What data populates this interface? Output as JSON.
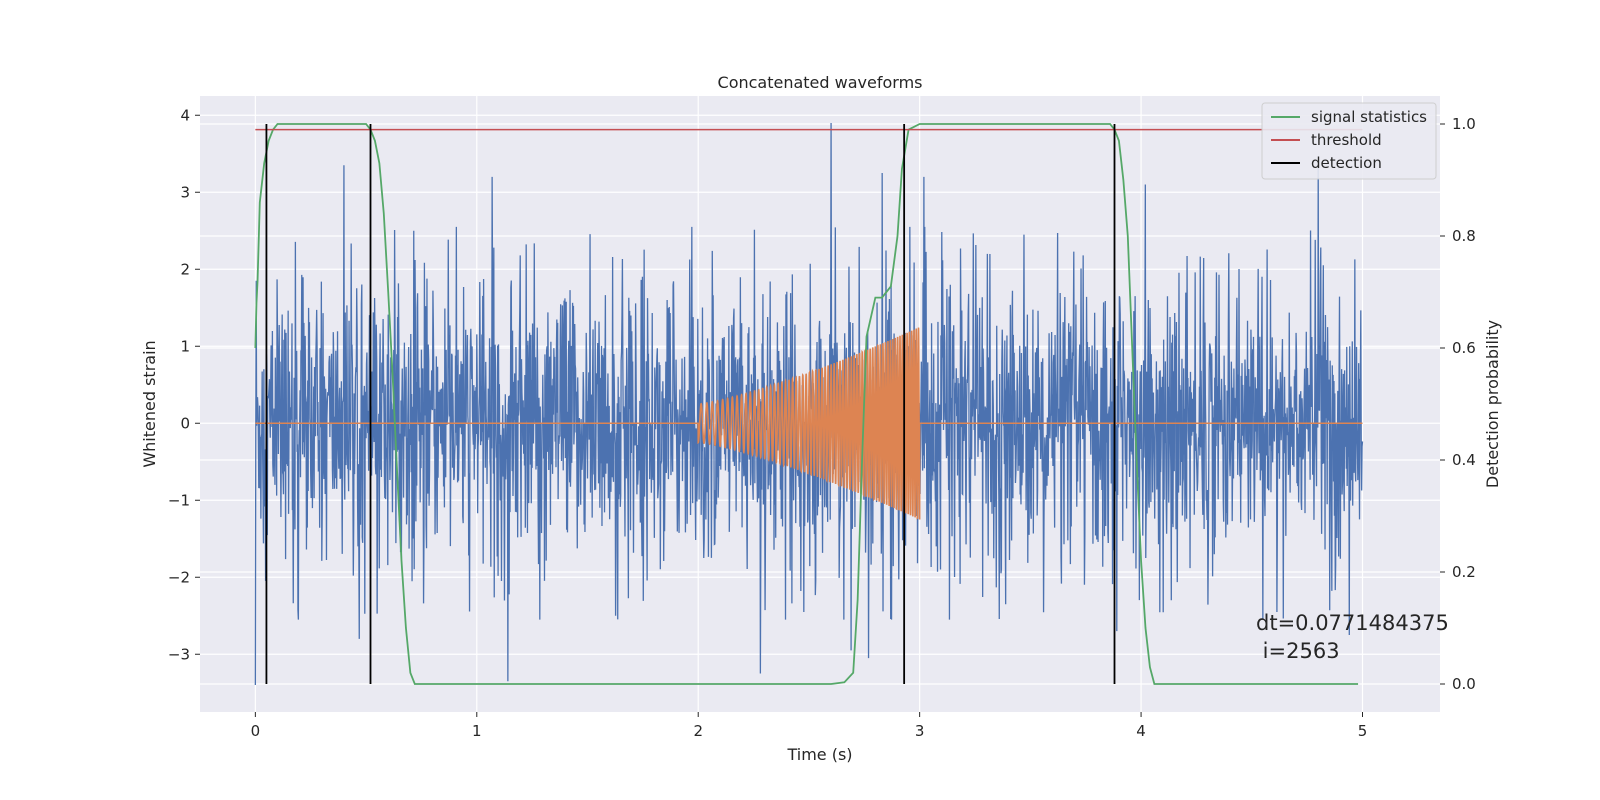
{
  "chart_data": {
    "type": "line",
    "title": "Concatenated waveforms",
    "xlabel": "Time (s)",
    "ylabel": "Whitened strain",
    "y2label": "Detection probability",
    "xlim": [
      -0.25,
      5.35
    ],
    "ylim": [
      -3.75,
      4.25
    ],
    "y2lim": [
      -0.05,
      1.05
    ],
    "xticks": [
      0,
      1,
      2,
      3,
      4,
      5
    ],
    "xtick_labels": [
      "0",
      "1",
      "2",
      "3",
      "4",
      "5"
    ],
    "yticks": [
      -3,
      -2,
      -1,
      0,
      1,
      2,
      3,
      4
    ],
    "ytick_labels": [
      "−3",
      "−2",
      "−1",
      "0",
      "1",
      "2",
      "3",
      "4"
    ],
    "y2ticks": [
      0.0,
      0.2,
      0.4,
      0.6,
      0.8,
      1.0
    ],
    "y2tick_labels": [
      "0.0",
      "0.2",
      "0.4",
      "0.6",
      "0.8",
      "1.0"
    ],
    "grid": true,
    "legend_position": "top-right",
    "annotation": {
      "line1": "dt=0.0771484375",
      "line2": " i=2563",
      "x": 4.5,
      "y": -2.95
    },
    "colors": {
      "background": "#eaeaf2",
      "grid": "#ffffff",
      "noise": "#4c72b0",
      "chirp": "#dd8452",
      "statistics": "#55a868",
      "threshold": "#c44e52",
      "detection": "#000000"
    },
    "series": [
      {
        "name": "",
        "axis": "left",
        "kind": "whitened-noise",
        "x_range": [
          0,
          5
        ],
        "core_amplitude": 1.0,
        "typical_peak_envelope": 2.6,
        "spikes": [
          {
            "x": 0.0,
            "y": -3.4
          },
          {
            "x": 0.004,
            "y": 1.85
          },
          {
            "x": 0.4,
            "y": 3.35
          },
          {
            "x": 0.47,
            "y": -2.8
          },
          {
            "x": 1.07,
            "y": 3.2
          },
          {
            "x": 1.14,
            "y": -3.35
          },
          {
            "x": 2.28,
            "y": -3.25
          },
          {
            "x": 2.6,
            "y": 3.9
          },
          {
            "x": 2.69,
            "y": -2.95
          },
          {
            "x": 2.77,
            "y": -3.05
          },
          {
            "x": 2.83,
            "y": 3.25
          },
          {
            "x": 3.02,
            "y": 3.2
          },
          {
            "x": 3.89,
            "y": -2.7
          },
          {
            "x": 4.02,
            "y": 3.1
          },
          {
            "x": 4.55,
            "y": -2.55
          },
          {
            "x": 4.8,
            "y": 3.35
          },
          {
            "x": 4.94,
            "y": -2.75
          }
        ]
      },
      {
        "name": "",
        "axis": "left",
        "kind": "chirp",
        "start": 2.0,
        "end": 3.0,
        "amp_start": 0.25,
        "amp_end": 1.25,
        "cycles": 68
      },
      {
        "name": "signal statistics",
        "axis": "right",
        "points": [
          [
            0.0,
            0.6
          ],
          [
            0.005,
            0.68
          ],
          [
            0.01,
            0.72
          ],
          [
            0.02,
            0.86
          ],
          [
            0.04,
            0.93
          ],
          [
            0.06,
            0.97
          ],
          [
            0.08,
            0.99
          ],
          [
            0.1,
            1.0
          ],
          [
            0.45,
            1.0
          ],
          [
            0.5,
            1.0
          ],
          [
            0.52,
            0.99
          ],
          [
            0.54,
            0.97
          ],
          [
            0.56,
            0.93
          ],
          [
            0.58,
            0.84
          ],
          [
            0.6,
            0.7
          ],
          [
            0.62,
            0.55
          ],
          [
            0.64,
            0.38
          ],
          [
            0.66,
            0.22
          ],
          [
            0.68,
            0.1
          ],
          [
            0.7,
            0.02
          ],
          [
            0.72,
            0.0
          ],
          [
            1.0,
            0.0
          ],
          [
            2.0,
            0.0
          ],
          [
            2.6,
            0.0
          ],
          [
            2.66,
            0.003
          ],
          [
            2.7,
            0.02
          ],
          [
            2.72,
            0.15
          ],
          [
            2.74,
            0.4
          ],
          [
            2.76,
            0.62
          ],
          [
            2.8,
            0.69
          ],
          [
            2.83,
            0.69
          ],
          [
            2.87,
            0.71
          ],
          [
            2.9,
            0.8
          ],
          [
            2.92,
            0.92
          ],
          [
            2.95,
            0.99
          ],
          [
            3.0,
            1.0
          ],
          [
            3.86,
            1.0
          ],
          [
            3.88,
            0.99
          ],
          [
            3.9,
            0.97
          ],
          [
            3.92,
            0.9
          ],
          [
            3.94,
            0.8
          ],
          [
            3.96,
            0.6
          ],
          [
            3.98,
            0.4
          ],
          [
            4.0,
            0.22
          ],
          [
            4.02,
            0.1
          ],
          [
            4.04,
            0.03
          ],
          [
            4.06,
            0.0
          ],
          [
            4.98,
            0.0
          ]
        ]
      },
      {
        "name": "threshold",
        "axis": "right",
        "value": 0.99,
        "x_range": [
          0,
          5
        ]
      },
      {
        "name": "detection",
        "axis": "right",
        "x_positions": [
          0.05,
          0.52,
          2.93,
          3.88
        ],
        "y_range": [
          0.0,
          1.0
        ]
      }
    ]
  }
}
